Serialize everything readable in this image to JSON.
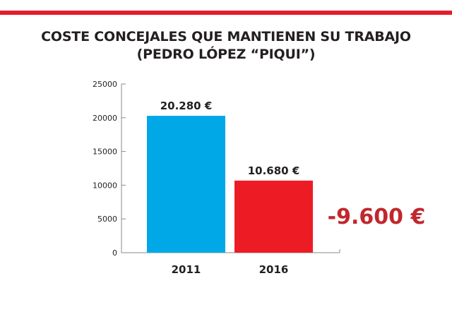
{
  "chart_data": {
    "type": "bar",
    "title": "COSTE CONCEJALES QUE MANTIENEN SU TRABAJO",
    "subtitle": "(PEDRO LÓPEZ “PIQUI”)",
    "xlabel": "",
    "ylabel": "",
    "categories": [
      "2011",
      "2016"
    ],
    "values": [
      20280,
      10680
    ],
    "data_labels": [
      "20.280 €",
      "10.680 €"
    ],
    "bar_colors": [
      "#00a8e8",
      "#ed1c24"
    ],
    "ylim": [
      0,
      25000
    ],
    "yticks": [
      0,
      5000,
      10000,
      15000,
      20000,
      25000
    ],
    "ytick_labels": [
      "0",
      "5000",
      "10000",
      "15000",
      "20000",
      "25000"
    ],
    "grid": false,
    "annotations": [
      {
        "text": "-9.600 €",
        "color": "#c1272d",
        "position": "right"
      }
    ]
  },
  "colors": {
    "top_bar": "#e31e2a",
    "axis": "#8a8a8a",
    "text": "#231f20"
  }
}
